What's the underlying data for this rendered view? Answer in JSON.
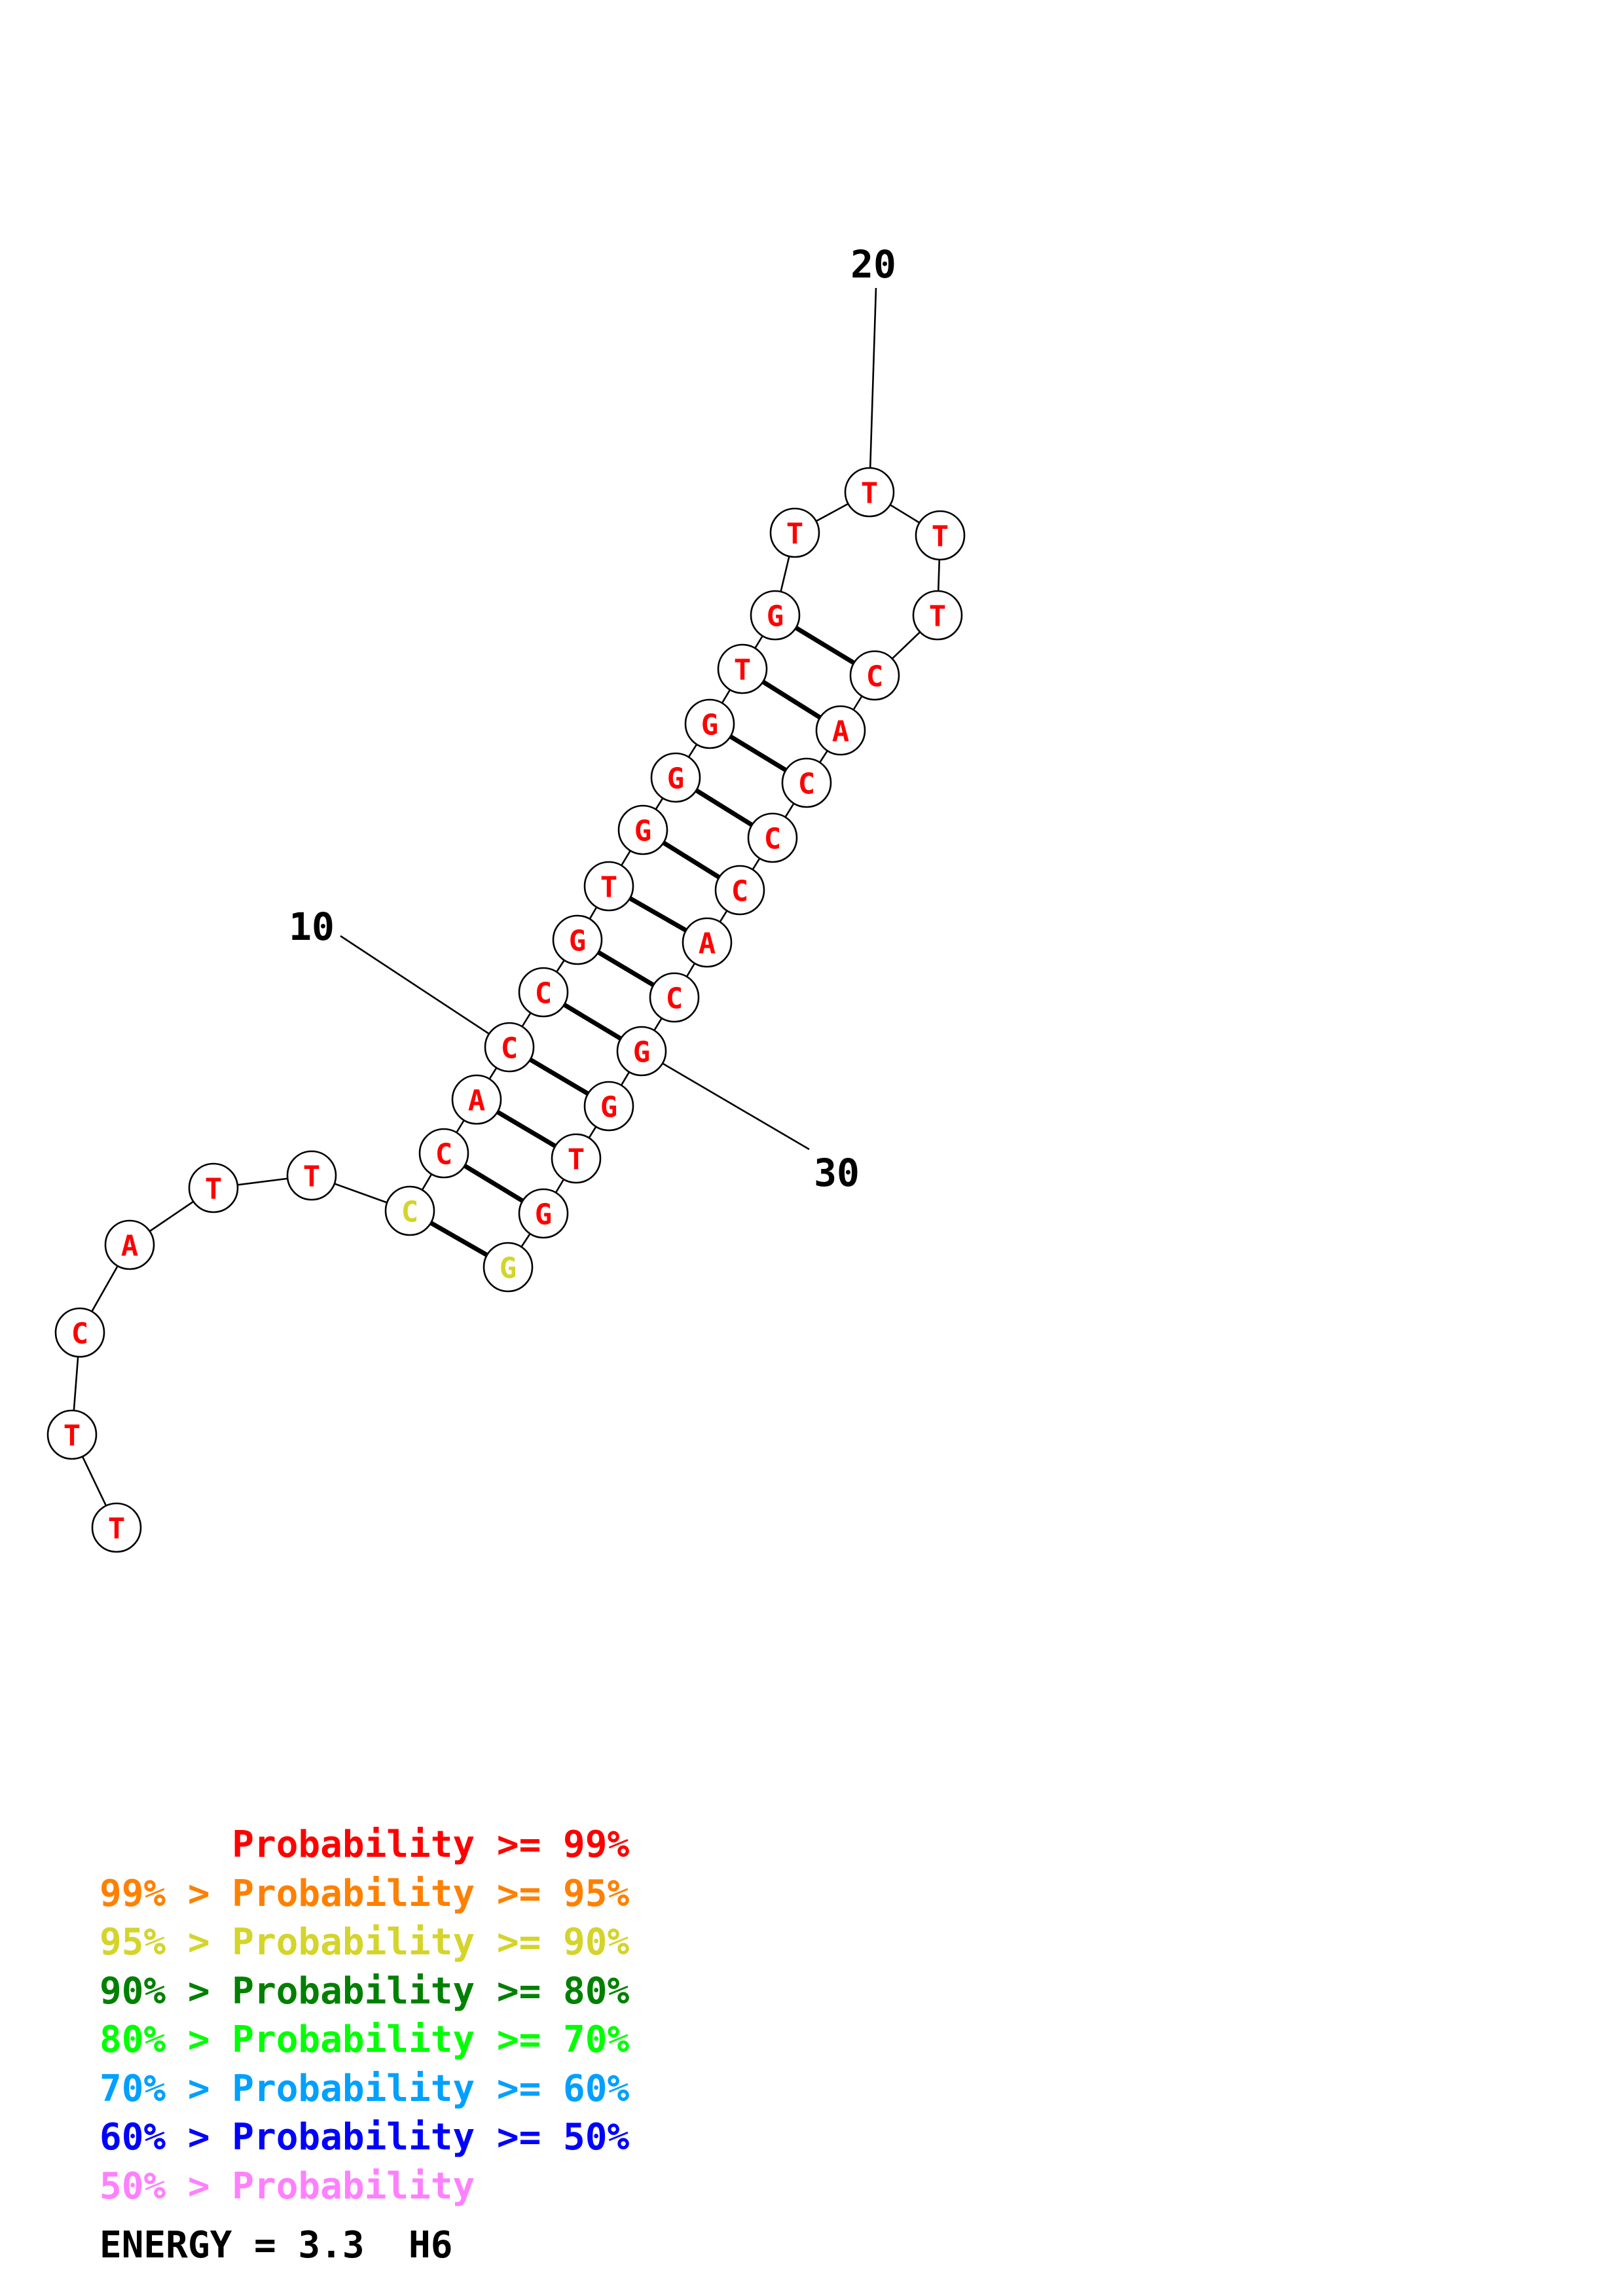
{
  "structure": {
    "sequence": [
      "T",
      "T",
      "C",
      "A",
      "T",
      "T",
      "C",
      "C",
      "A",
      "C",
      "C",
      "G",
      "T",
      "G",
      "G",
      "G",
      "T",
      "G",
      "T",
      "T",
      "T",
      "T",
      "C",
      "A",
      "C",
      "C",
      "C",
      "A",
      "C",
      "G",
      "G",
      "T",
      "G",
      "G"
    ],
    "colors": [
      "red",
      "red",
      "red",
      "red",
      "red",
      "red",
      "yellow",
      "red",
      "red",
      "red",
      "red",
      "red",
      "red",
      "red",
      "red",
      "red",
      "red",
      "red",
      "red",
      "red",
      "red",
      "red",
      "red",
      "red",
      "red",
      "red",
      "red",
      "red",
      "red",
      "red",
      "red",
      "red",
      "red",
      "yellow"
    ],
    "pairs": [
      [
        7,
        34
      ],
      [
        8,
        33
      ],
      [
        9,
        32
      ],
      [
        10,
        31
      ],
      [
        11,
        30
      ],
      [
        12,
        29
      ],
      [
        13,
        28
      ],
      [
        14,
        27
      ],
      [
        15,
        26
      ],
      [
        16,
        25
      ],
      [
        17,
        24
      ],
      [
        18,
        23
      ]
    ],
    "index_labels": [
      {
        "index": 10,
        "text": "10"
      },
      {
        "index": 20,
        "text": "20"
      },
      {
        "index": 30,
        "text": "30"
      }
    ]
  },
  "palette": {
    "red": "#ff0000",
    "orange": "#ff8000",
    "yellow": "#d4d42a",
    "darkgreen": "#008000",
    "green": "#00ff00",
    "lightblue": "#00a0ff",
    "blue": "#0000ff",
    "pink": "#ff80ff",
    "black": "#000000"
  },
  "legend": [
    {
      "text": "      Probability >= 99%",
      "color": "red"
    },
    {
      "text": "99% > Probability >= 95%",
      "color": "orange"
    },
    {
      "text": "95% > Probability >= 90%",
      "color": "yellow"
    },
    {
      "text": "90% > Probability >= 80%",
      "color": "darkgreen"
    },
    {
      "text": "80% > Probability >= 70%",
      "color": "green"
    },
    {
      "text": "70% > Probability >= 60%",
      "color": "lightblue"
    },
    {
      "text": "60% > Probability >= 50%",
      "color": "blue"
    },
    {
      "text": "50% > Probability",
      "color": "pink"
    }
  ],
  "energy_text": "ENERGY = 3.3  H6"
}
